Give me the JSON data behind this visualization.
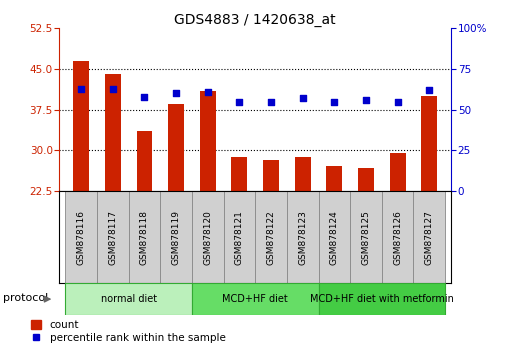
{
  "title": "GDS4883 / 1420638_at",
  "categories": [
    "GSM878116",
    "GSM878117",
    "GSM878118",
    "GSM878119",
    "GSM878120",
    "GSM878121",
    "GSM878122",
    "GSM878123",
    "GSM878124",
    "GSM878125",
    "GSM878126",
    "GSM878127"
  ],
  "count_values": [
    46.5,
    44.0,
    33.5,
    38.5,
    41.0,
    28.8,
    28.2,
    28.8,
    27.2,
    26.8,
    29.5,
    40.0
  ],
  "percentile_values": [
    63,
    63,
    58,
    60,
    61,
    55,
    55,
    57,
    55,
    56,
    55,
    62
  ],
  "left_ylim": [
    22.5,
    52.5
  ],
  "left_yticks": [
    22.5,
    30,
    37.5,
    45,
    52.5
  ],
  "right_ylim": [
    0,
    100
  ],
  "right_yticks": [
    0,
    25,
    50,
    75,
    100
  ],
  "right_yticklabels": [
    "0",
    "25",
    "50",
    "75",
    "100%"
  ],
  "bar_color": "#cc2200",
  "dot_color": "#0000cc",
  "bar_width": 0.5,
  "groups": [
    {
      "label": "normal diet",
      "start": 0,
      "end": 3,
      "color": "#bbf0bb"
    },
    {
      "label": "MCD+HF diet",
      "start": 4,
      "end": 7,
      "color": "#66dd66"
    },
    {
      "label": "MCD+HF diet with metformin",
      "start": 8,
      "end": 11,
      "color": "#44cc44"
    }
  ],
  "tick_bg_color": "#d0d0d0",
  "tick_border_color": "#888888",
  "protocol_label": "protocol",
  "grid_dotted_color": "black",
  "chart_border_color": "black"
}
